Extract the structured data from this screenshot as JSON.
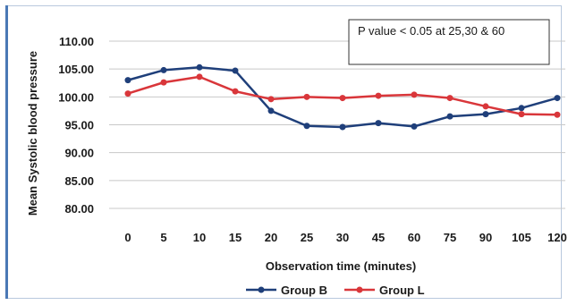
{
  "chart_data": {
    "type": "line",
    "ylabel": "Mean Systolic blood pressure",
    "xlabel": "Observation time (minutes)",
    "categories": [
      "0",
      "5",
      "10",
      "15",
      "20",
      "25",
      "30",
      "45",
      "60",
      "75",
      "90",
      "105",
      "120"
    ],
    "yticks": [
      "110.00",
      "105.00",
      "100.00",
      "95.00",
      "90.00",
      "85.00",
      "80.00"
    ],
    "ylim": [
      80,
      110
    ],
    "grid": true,
    "legend_position": "bottom",
    "annotation": "P value < 0.05 at 25,30 & 60",
    "series": [
      {
        "name": "Group B",
        "color": "#1f3f7a",
        "values": [
          103.0,
          104.8,
          105.3,
          104.7,
          97.5,
          94.8,
          94.6,
          95.3,
          94.7,
          96.5,
          96.9,
          98.0,
          99.8
        ]
      },
      {
        "name": "Group L",
        "color": "#d9363a",
        "values": [
          100.6,
          102.6,
          103.6,
          101.0,
          99.6,
          100.0,
          99.8,
          100.2,
          100.4,
          99.8,
          98.3,
          96.9,
          96.8
        ]
      }
    ]
  }
}
